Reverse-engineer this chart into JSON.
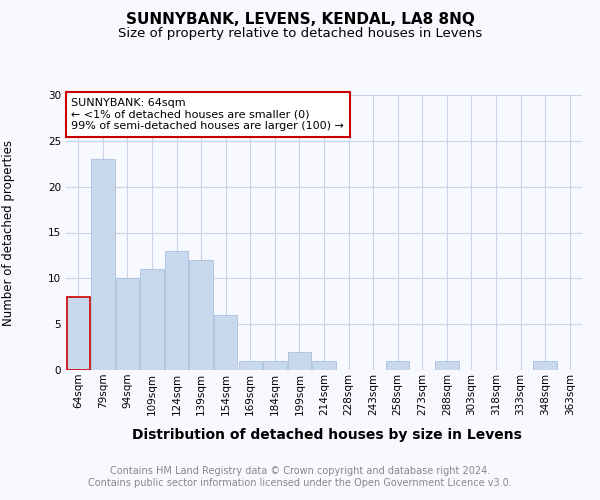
{
  "title": "SUNNYBANK, LEVENS, KENDAL, LA8 8NQ",
  "subtitle": "Size of property relative to detached houses in Levens",
  "xlabel": "Distribution of detached houses by size in Levens",
  "ylabel": "Number of detached properties",
  "categories": [
    "64sqm",
    "79sqm",
    "94sqm",
    "109sqm",
    "124sqm",
    "139sqm",
    "154sqm",
    "169sqm",
    "184sqm",
    "199sqm",
    "214sqm",
    "228sqm",
    "243sqm",
    "258sqm",
    "273sqm",
    "288sqm",
    "303sqm",
    "318sqm",
    "333sqm",
    "348sqm",
    "363sqm"
  ],
  "values": [
    8,
    23,
    10,
    11,
    13,
    12,
    6,
    1,
    1,
    2,
    1,
    0,
    0,
    1,
    0,
    1,
    0,
    0,
    0,
    1,
    0
  ],
  "bar_color": "#c8d9ee",
  "bar_edge_color": "#a0b8d8",
  "highlight_bar_edge_color": "#cc0000",
  "annotation_box_text": "SUNNYBANK: 64sqm\n← <1% of detached houses are smaller (0)\n99% of semi-detached houses are larger (100) →",
  "annotation_box_edge_color": "#cc0000",
  "ylim": [
    0,
    30
  ],
  "yticks": [
    0,
    5,
    10,
    15,
    20,
    25,
    30
  ],
  "grid_color": "#c8d4e8",
  "background_color": "#f8f9ff",
  "title_fontsize": 11,
  "subtitle_fontsize": 9.5,
  "xlabel_fontsize": 10,
  "ylabel_fontsize": 8.5,
  "tick_fontsize": 7.5,
  "annotation_fontsize": 8,
  "footnote_fontsize": 7,
  "footnote": "Contains HM Land Registry data © Crown copyright and database right 2024.\nContains public sector information licensed under the Open Government Licence v3.0."
}
